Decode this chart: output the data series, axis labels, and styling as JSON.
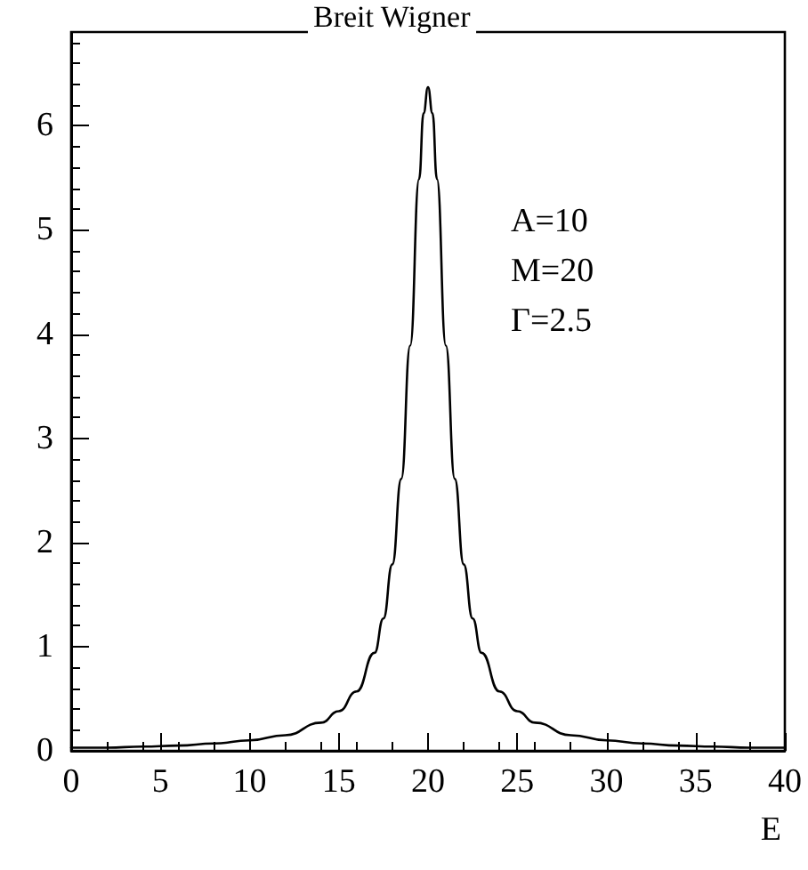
{
  "chart_data": {
    "type": "line",
    "title": "Breit Wigner",
    "xlabel": "E",
    "x": [
      0,
      2,
      4,
      6,
      8,
      10,
      12,
      14,
      15,
      16,
      17,
      17.5,
      18,
      18.5,
      19,
      19.5,
      19.75,
      20,
      20.25,
      20.5,
      21,
      21.5,
      22,
      22.5,
      23,
      24,
      25,
      26,
      28,
      30,
      32,
      34,
      36,
      38,
      40
    ],
    "series": [
      {
        "color": "#000000",
        "values": [
          0.03,
          0.03,
          0.04,
          0.05,
          0.07,
          0.1,
          0.15,
          0.27,
          0.38,
          0.57,
          0.94,
          1.27,
          1.79,
          2.61,
          3.89,
          5.49,
          6.12,
          6.37,
          6.12,
          5.49,
          3.89,
          2.61,
          1.79,
          1.27,
          0.94,
          0.57,
          0.38,
          0.27,
          0.15,
          0.1,
          0.07,
          0.05,
          0.04,
          0.03,
          0.03
        ]
      }
    ],
    "xlim": [
      0,
      40
    ],
    "xticks": [
      0,
      5,
      10,
      15,
      20,
      25,
      30,
      35,
      40
    ],
    "ylim": [
      0,
      6.9
    ],
    "yticks": [
      0,
      1,
      2,
      3,
      4,
      5,
      6
    ],
    "annotations": [
      "A=10",
      "M=20",
      "Γ=2.5"
    ],
    "grid": false,
    "marker": "none",
    "line_style": "solid"
  }
}
